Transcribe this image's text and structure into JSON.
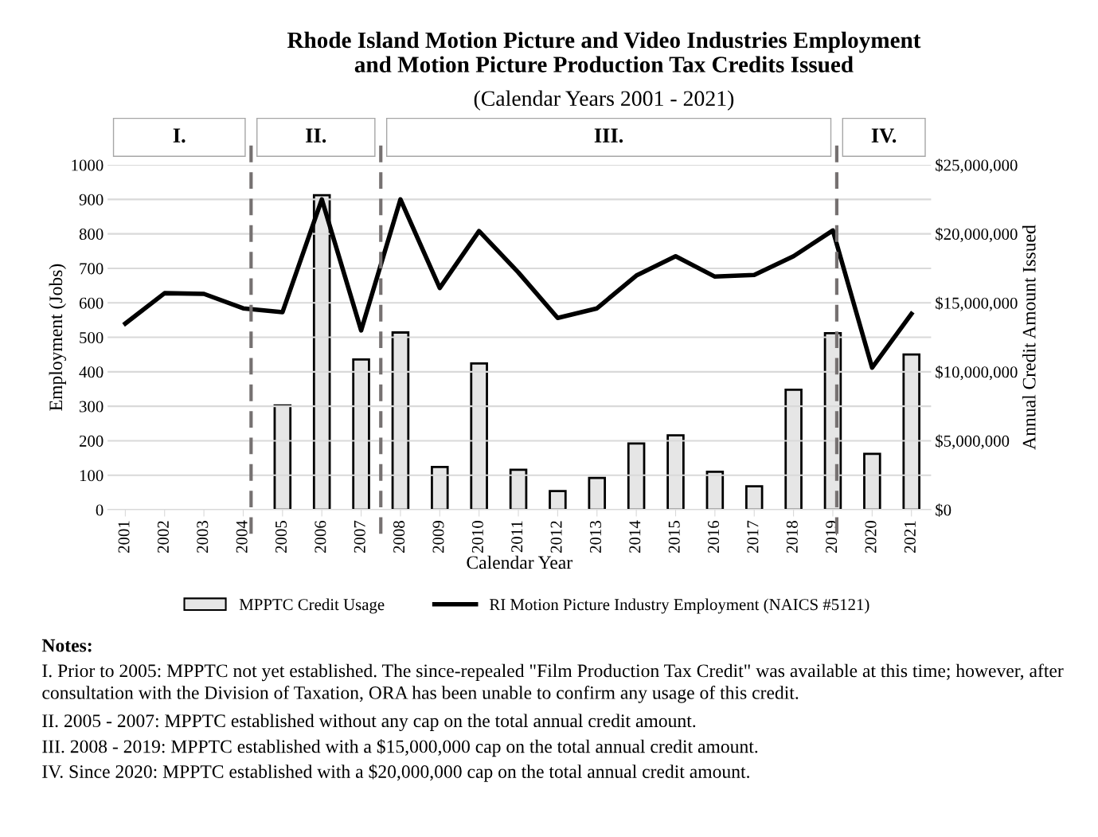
{
  "chart_data": {
    "type": "bar",
    "title": "Rhode Island Motion Picture and Video Industries Employment\nand Motion Picture Production Tax Credits Issued",
    "subtitle": "(Calendar Years 2001 - 2021)",
    "xlabel": "Calendar Year",
    "ylabel": "Employment (Jobs)",
    "y2label": "Annual Credit Amount Issued",
    "x": [
      2001,
      2002,
      2003,
      2004,
      2005,
      2006,
      2007,
      2008,
      2009,
      2010,
      2011,
      2012,
      2013,
      2014,
      2015,
      2016,
      2017,
      2018,
      2019,
      2020,
      2021
    ],
    "xlim": [
      2000.55,
      2021.5
    ],
    "xticks": [
      2001,
      2002,
      2003,
      2004,
      2005,
      2006,
      2007,
      2008,
      2009,
      2010,
      2011,
      2012,
      2013,
      2014,
      2015,
      2016,
      2017,
      2018,
      2019,
      2020,
      2021
    ],
    "ylim": [
      0,
      1000
    ],
    "yticks": [
      0,
      100,
      200,
      300,
      400,
      500,
      600,
      700,
      800,
      900,
      1000
    ],
    "y2lim": [
      0,
      25000000
    ],
    "y2ticks": [
      {
        "value": 0,
        "label": "$0"
      },
      {
        "value": 5000000,
        "label": "$5,000,000"
      },
      {
        "value": 10000000,
        "label": "$10,000,000"
      },
      {
        "value": 15000000,
        "label": "$15,000,000"
      },
      {
        "value": 20000000,
        "label": "$20,000,000"
      },
      {
        "value": 25000000,
        "label": "$25,000,000"
      }
    ],
    "series": [
      {
        "name": "MPPTC Credit Usage",
        "axis": "y2",
        "color": "#e6e6e6",
        "values": [
          null,
          null,
          null,
          null,
          7560000,
          22800000,
          10900000,
          12850000,
          3100000,
          10600000,
          2900000,
          1350000,
          2300000,
          4800000,
          5400000,
          2750000,
          1700000,
          8700000,
          12800000,
          4050000,
          11250000
        ]
      },
      {
        "name": "RI Motion Picture Industry Employment (NAICS #5121)",
        "type": "line",
        "color": "#000000",
        "values": [
          540,
          628,
          626,
          584,
          573,
          900,
          520,
          900,
          643,
          808,
          688,
          556,
          584,
          679,
          735,
          676,
          681,
          735,
          810,
          412,
          568
        ]
      }
    ],
    "ref_lines": [
      {
        "axis": "x",
        "value": 2004.2,
        "color": "#767171",
        "line_style": "dashed"
      },
      {
        "axis": "x",
        "value": 2007.5,
        "color": "#767171",
        "line_style": "dashed"
      },
      {
        "axis": "x",
        "value": 2019.1,
        "color": "#767171",
        "line_style": "dashed"
      }
    ],
    "grid": "y",
    "legend": "bottom",
    "annotations": [
      "I.",
      "II.",
      "III.",
      "IV.",
      "Notes:",
      "I. Prior to 2005: MPPTC not yet established. The since-repealed \"Film Production Tax Credit\" was available at this time; however, after consultation with the Division of Taxation, ORA has been unable to confirm any usage of this credit.",
      "II. 2005 - 2007: MPPTC established without any cap on the total annual credit amount.",
      "III. 2008 - 2019: MPPTC established with a $15,000,000 cap on the total annual credit amount.",
      "IV. Since 2020: MPPTC established with a $20,000,000 cap on the total annual credit amount."
    ]
  }
}
